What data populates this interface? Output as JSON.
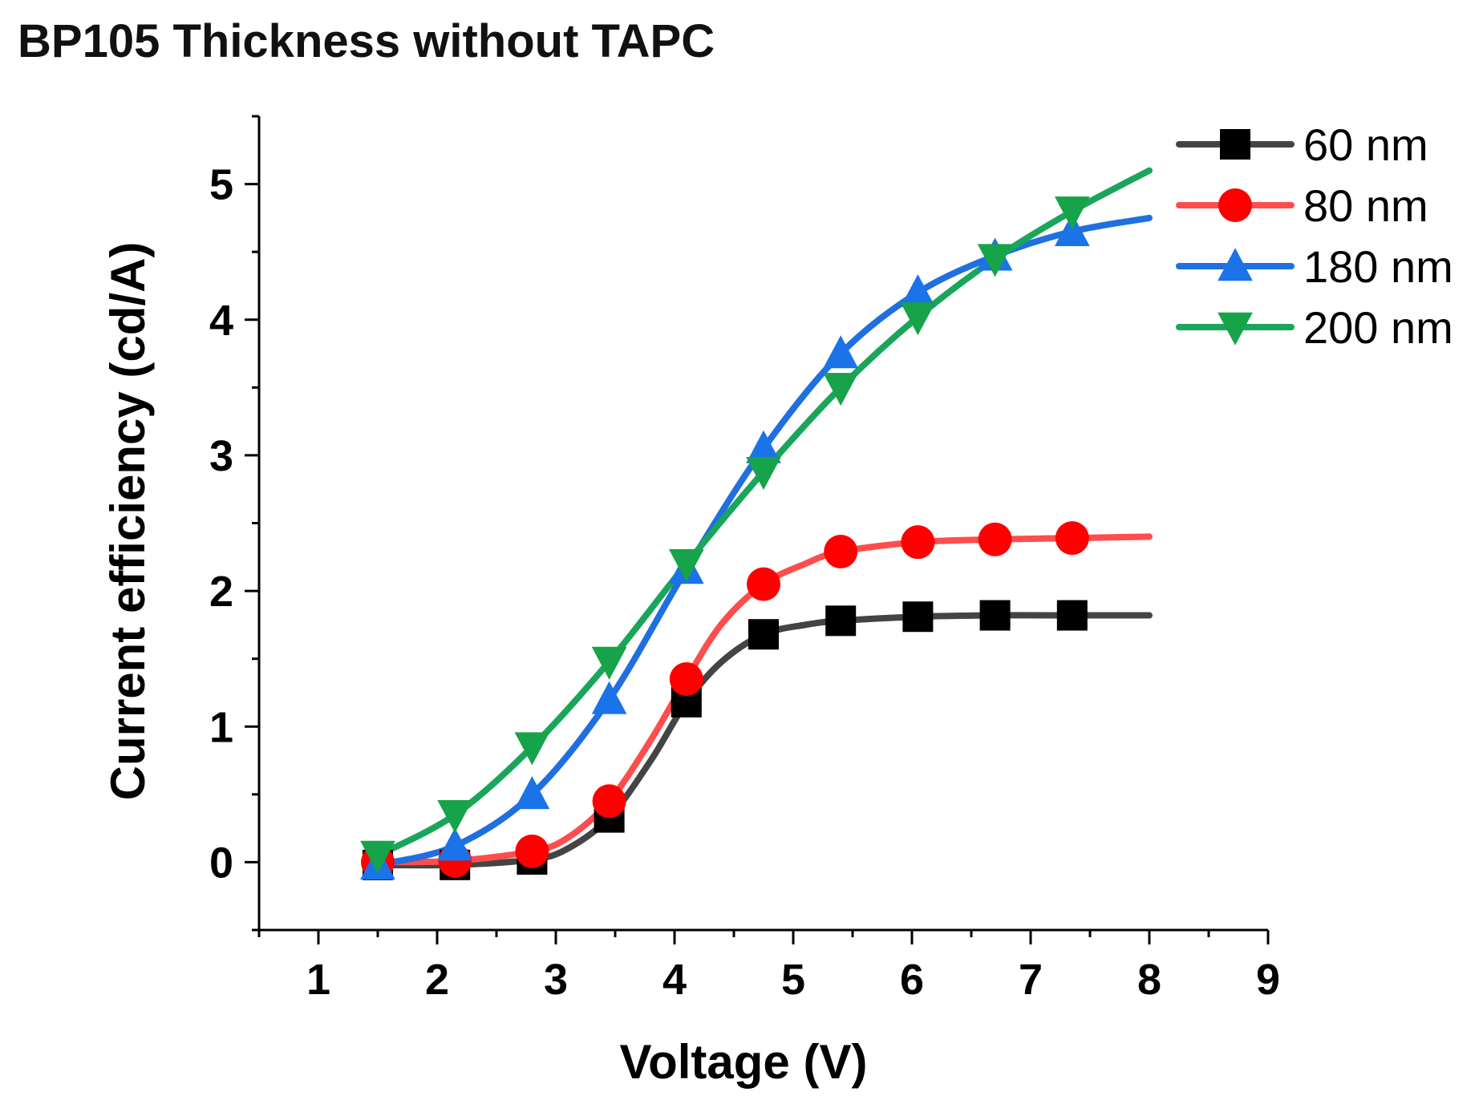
{
  "chart_data": {
    "type": "line",
    "title": "BP105 Thickness without TAPC",
    "xlabel": "Voltage (V)",
    "ylabel": "Current efficiency (cd/A)",
    "xlim": [
      0.5,
      9
    ],
    "ylim": [
      -0.5,
      5.5
    ],
    "xticks": [
      "1",
      "2",
      "3",
      "4",
      "5",
      "6",
      "7",
      "8",
      "9"
    ],
    "yticks": [
      "0",
      "1",
      "2",
      "3",
      "4",
      "5"
    ],
    "legend_position": "top-right",
    "series": [
      {
        "name": "60 nm",
        "color": "#444444",
        "marker": "square",
        "marker_color": "#000000",
        "x": [
          1.5,
          2.15,
          2.8,
          3.45,
          4.1,
          4.75,
          5.4,
          6.05,
          6.7,
          7.35
        ],
        "y": [
          -0.02,
          -0.02,
          0.02,
          0.33,
          1.18,
          1.68,
          1.78,
          1.81,
          1.82,
          1.82
        ],
        "curve_x": [
          1.5,
          2.15,
          2.8,
          3.1,
          3.45,
          3.8,
          4.1,
          4.4,
          4.75,
          5.1,
          5.4,
          6.05,
          6.7,
          7.35,
          8.0
        ],
        "curve_y": [
          -0.02,
          -0.02,
          0.02,
          0.1,
          0.33,
          0.75,
          1.18,
          1.48,
          1.68,
          1.75,
          1.78,
          1.81,
          1.82,
          1.82,
          1.82
        ]
      },
      {
        "name": "80 nm",
        "color": "#ff4d4d",
        "marker": "circle",
        "marker_color": "#ff0000",
        "x": [
          1.5,
          2.15,
          2.8,
          3.45,
          4.1,
          4.75,
          5.4,
          6.05,
          6.7,
          7.35
        ],
        "y": [
          0.0,
          0.01,
          0.08,
          0.45,
          1.35,
          2.05,
          2.29,
          2.36,
          2.38,
          2.39
        ],
        "curve_x": [
          1.5,
          2.15,
          2.8,
          3.1,
          3.45,
          3.8,
          4.1,
          4.4,
          4.75,
          5.1,
          5.4,
          6.05,
          6.7,
          7.35,
          8.0
        ],
        "curve_y": [
          0.0,
          0.01,
          0.08,
          0.18,
          0.45,
          0.9,
          1.35,
          1.76,
          2.05,
          2.2,
          2.29,
          2.36,
          2.38,
          2.39,
          2.4
        ]
      },
      {
        "name": "180 nm",
        "color": "#1f6fe0",
        "marker": "triangle-up",
        "marker_color": "#1a73e8",
        "x": [
          1.5,
          2.15,
          2.8,
          3.45,
          4.1,
          4.75,
          5.4,
          6.05,
          6.7,
          7.35
        ],
        "y": [
          -0.02,
          0.12,
          0.5,
          1.2,
          2.16,
          3.05,
          3.75,
          4.2,
          4.47,
          4.65
        ],
        "curve_x": [
          1.5,
          2.15,
          2.8,
          3.45,
          4.1,
          4.75,
          5.4,
          6.05,
          6.7,
          7.35,
          8.0
        ],
        "curve_y": [
          -0.02,
          0.12,
          0.5,
          1.2,
          2.16,
          3.05,
          3.75,
          4.2,
          4.47,
          4.65,
          4.75
        ]
      },
      {
        "name": "200 nm",
        "color": "#1aa65a",
        "marker": "triangle-down",
        "marker_color": "#16a34a",
        "x": [
          1.5,
          2.15,
          2.8,
          3.45,
          4.1,
          4.75,
          5.4,
          6.05,
          6.7,
          7.35
        ],
        "y": [
          0.05,
          0.35,
          0.85,
          1.48,
          2.2,
          2.88,
          3.5,
          4.02,
          4.45,
          4.8
        ],
        "curve_x": [
          1.5,
          2.15,
          2.8,
          3.45,
          4.1,
          4.75,
          5.4,
          6.05,
          6.7,
          7.35,
          8.0
        ],
        "curve_y": [
          0.05,
          0.35,
          0.85,
          1.48,
          2.2,
          2.88,
          3.5,
          4.02,
          4.45,
          4.8,
          5.1
        ]
      }
    ]
  }
}
